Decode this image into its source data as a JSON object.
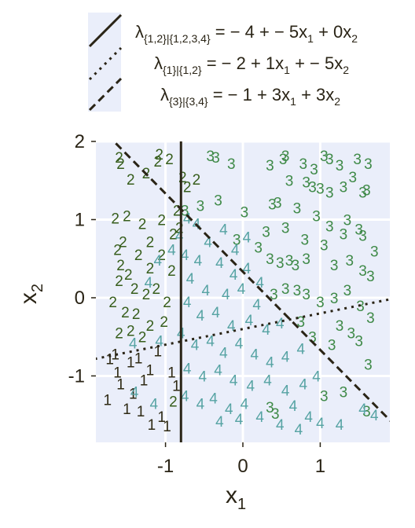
{
  "chart_data": {
    "type": "scatter",
    "title": "",
    "xlabel": "x",
    "xlabel_sub": "1",
    "ylabel": "x",
    "ylabel_sub": "2",
    "xlim": [
      -1.9,
      1.9
    ],
    "ylim": [
      -1.85,
      2.0
    ],
    "xticks": [
      -1,
      0,
      1
    ],
    "yticks": [
      -1,
      0,
      1,
      2
    ],
    "xtick_labels": [
      "-1",
      "0",
      "1"
    ],
    "ytick_labels": [
      "-1",
      "0",
      "1",
      "2"
    ],
    "grid": true,
    "background": "#eaeefa",
    "legend_position": "top",
    "legend": [
      {
        "label": "λ{1,2}|{1,2,3,4} = −4 + −5x1 + 0x2",
        "style": "solid"
      },
      {
        "label": "λ{1}|{1,2} = −2 + 1x1 + −5x2",
        "style": "dotted"
      },
      {
        "label": "λ{3}|{3,4} = −1 + 3x1 + 3x2",
        "style": "dashed"
      }
    ],
    "boundaries": [
      {
        "name": "λ{1,2}|{1,2,3,4}",
        "style": "solid",
        "intercept": -4,
        "coef_x1": -5,
        "coef_x2": 0
      },
      {
        "name": "λ{1}|{1,2}",
        "style": "dotted",
        "intercept": -2,
        "coef_x1": 1,
        "coef_x2": -5
      },
      {
        "name": "λ{3}|{3,4}",
        "style": "dashed",
        "intercept": -1,
        "coef_x1": 3,
        "coef_x2": 3
      }
    ],
    "series": [
      {
        "label": "1",
        "color": "#2f2a14",
        "points": [
          [
            -1.72,
            -0.78
          ],
          [
            -1.62,
            -0.95
          ],
          [
            -1.45,
            -0.82
          ],
          [
            -1.35,
            -0.77
          ],
          [
            -1.28,
            -1.05
          ],
          [
            -1.58,
            -1.1
          ],
          [
            -1.75,
            -1.3
          ],
          [
            -1.5,
            -1.42
          ],
          [
            -1.18,
            -1.62
          ],
          [
            -1.05,
            -1.52
          ],
          [
            -0.98,
            -1.64
          ],
          [
            -1.42,
            -1.22
          ],
          [
            -1.65,
            -0.72
          ],
          [
            -1.2,
            -0.92
          ],
          [
            -0.92,
            -0.95
          ],
          [
            -0.86,
            -1.12
          ],
          [
            -1.1,
            -0.68
          ],
          [
            -1.32,
            -1.45
          ]
        ]
      },
      {
        "label": "2",
        "color": "#375e1c",
        "points": [
          [
            -1.6,
            1.8
          ],
          [
            -1.58,
            1.72
          ],
          [
            -1.1,
            1.75
          ],
          [
            -1.08,
            1.84
          ],
          [
            -0.95,
            1.78
          ],
          [
            -1.25,
            1.6
          ],
          [
            -1.45,
            1.52
          ],
          [
            -0.72,
            1.42
          ],
          [
            -0.6,
            1.52
          ],
          [
            -0.78,
            1.55
          ],
          [
            -0.85,
            1.12
          ],
          [
            -1.65,
            1.02
          ],
          [
            -1.5,
            1.05
          ],
          [
            -1.3,
            0.95
          ],
          [
            -1.55,
            0.72
          ],
          [
            -1.62,
            0.62
          ],
          [
            -1.2,
            0.72
          ],
          [
            -1.05,
            0.55
          ],
          [
            -1.58,
            0.42
          ],
          [
            -1.48,
            0.3
          ],
          [
            -1.6,
            0.22
          ],
          [
            -1.4,
            0.12
          ],
          [
            -1.25,
            0.05
          ],
          [
            -1.52,
            -0.18
          ],
          [
            -1.38,
            -0.2
          ],
          [
            -1.2,
            -0.35
          ],
          [
            -1.6,
            -0.45
          ],
          [
            -1.12,
            0.12
          ],
          [
            -0.98,
            -0.05
          ],
          [
            -0.92,
            0.35
          ],
          [
            -1.02,
            -0.3
          ],
          [
            -1.45,
            -0.42
          ],
          [
            -0.9,
            0.82
          ],
          [
            -1.2,
            0.38
          ],
          [
            -1.35,
            0.55
          ],
          [
            -1.05,
            1.0
          ],
          [
            -0.82,
            0.9
          ],
          [
            -0.9,
            -1.32
          ],
          [
            -1.68,
            -0.05
          ],
          [
            -1.3,
            -0.5
          ]
        ]
      },
      {
        "label": "3",
        "color": "#3f8a48",
        "points": [
          [
            -0.42,
            1.82
          ],
          [
            -0.35,
            1.8
          ],
          [
            -0.15,
            1.72
          ],
          [
            0.35,
            1.7
          ],
          [
            0.55,
            1.82
          ],
          [
            0.52,
            1.78
          ],
          [
            0.78,
            1.72
          ],
          [
            0.92,
            1.65
          ],
          [
            1.05,
            1.82
          ],
          [
            1.12,
            1.78
          ],
          [
            1.25,
            1.7
          ],
          [
            1.48,
            1.78
          ],
          [
            1.62,
            1.72
          ],
          [
            0.6,
            1.5
          ],
          [
            0.82,
            1.48
          ],
          [
            0.9,
            1.42
          ],
          [
            1.0,
            1.4
          ],
          [
            1.12,
            1.35
          ],
          [
            1.3,
            1.42
          ],
          [
            1.42,
            1.55
          ],
          [
            1.55,
            1.35
          ],
          [
            1.6,
            1.38
          ],
          [
            -0.75,
            1.12
          ],
          [
            -0.55,
            1.18
          ],
          [
            -0.32,
            1.25
          ],
          [
            0.02,
            1.1
          ],
          [
            0.38,
            1.2
          ],
          [
            0.45,
            1.22
          ],
          [
            0.7,
            1.15
          ],
          [
            0.95,
            1.05
          ],
          [
            1.12,
            0.92
          ],
          [
            1.35,
            1.0
          ],
          [
            1.5,
            0.88
          ],
          [
            0.3,
            0.85
          ],
          [
            0.55,
            0.9
          ],
          [
            0.8,
            0.75
          ],
          [
            1.05,
            0.68
          ],
          [
            1.3,
            0.82
          ],
          [
            1.55,
            0.8
          ],
          [
            1.7,
            0.6
          ],
          [
            0.35,
            0.5
          ],
          [
            0.48,
            0.45
          ],
          [
            0.6,
            0.48
          ],
          [
            0.68,
            0.42
          ],
          [
            0.82,
            0.5
          ],
          [
            1.18,
            0.42
          ],
          [
            1.38,
            0.48
          ],
          [
            1.55,
            0.35
          ],
          [
            1.65,
            0.28
          ],
          [
            0.4,
            0.05
          ],
          [
            0.55,
            0.12
          ],
          [
            0.7,
            0.1
          ],
          [
            0.82,
            0.05
          ],
          [
            1.0,
            -0.05
          ],
          [
            1.18,
            0.0
          ],
          [
            1.35,
            0.1
          ],
          [
            1.52,
            -0.1
          ],
          [
            1.65,
            -0.25
          ],
          [
            1.25,
            -0.35
          ],
          [
            1.4,
            -0.45
          ],
          [
            1.15,
            -0.6
          ],
          [
            0.9,
            -0.5
          ],
          [
            1.5,
            -0.55
          ],
          [
            1.62,
            -0.85
          ],
          [
            1.3,
            -1.2
          ],
          [
            1.05,
            -1.25
          ],
          [
            0.42,
            -1.48
          ],
          [
            0.35,
            -1.4
          ],
          [
            1.6,
            -1.45
          ],
          [
            0.75,
            -0.3
          ],
          [
            -0.08,
            0.75
          ],
          [
            0.2,
            0.65
          ]
        ]
      },
      {
        "label": "4",
        "color": "#56a3a3",
        "points": [
          [
            -0.72,
            1.02
          ],
          [
            -0.6,
            0.95
          ],
          [
            -0.82,
            0.8
          ],
          [
            -0.45,
            0.72
          ],
          [
            -0.25,
            0.88
          ],
          [
            -0.1,
            0.62
          ],
          [
            0.05,
            0.78
          ],
          [
            -0.75,
            0.55
          ],
          [
            -0.58,
            0.48
          ],
          [
            -0.3,
            0.45
          ],
          [
            -0.12,
            0.3
          ],
          [
            0.05,
            0.38
          ],
          [
            0.22,
            0.2
          ],
          [
            -0.68,
            0.25
          ],
          [
            -0.48,
            0.1
          ],
          [
            -0.22,
            0.05
          ],
          [
            -0.02,
            0.12
          ],
          [
            0.18,
            -0.08
          ],
          [
            -0.72,
            -0.05
          ],
          [
            -0.55,
            -0.22
          ],
          [
            -0.35,
            -0.18
          ],
          [
            -0.15,
            -0.35
          ],
          [
            0.08,
            -0.28
          ],
          [
            0.3,
            -0.4
          ],
          [
            0.48,
            -0.32
          ],
          [
            -0.8,
            -0.45
          ],
          [
            -0.62,
            -0.6
          ],
          [
            -0.42,
            -0.55
          ],
          [
            -0.25,
            -0.7
          ],
          [
            -0.05,
            -0.58
          ],
          [
            0.15,
            -0.72
          ],
          [
            0.35,
            -0.82
          ],
          [
            0.55,
            -0.75
          ],
          [
            0.75,
            -0.65
          ],
          [
            -0.72,
            -0.9
          ],
          [
            -0.52,
            -1.0
          ],
          [
            -0.32,
            -0.92
          ],
          [
            -0.12,
            -1.05
          ],
          [
            0.1,
            -1.12
          ],
          [
            0.32,
            -1.05
          ],
          [
            0.55,
            -1.18
          ],
          [
            0.78,
            -1.1
          ],
          [
            0.95,
            -1.0
          ],
          [
            -0.75,
            -1.25
          ],
          [
            -0.55,
            -1.35
          ],
          [
            -0.38,
            -1.28
          ],
          [
            -0.18,
            -1.42
          ],
          [
            0.02,
            -1.35
          ],
          [
            0.22,
            -1.52
          ],
          [
            0.48,
            -1.62
          ],
          [
            0.65,
            -1.38
          ],
          [
            0.85,
            -1.52
          ],
          [
            1.0,
            -1.6
          ],
          [
            1.25,
            -1.62
          ],
          [
            -0.3,
            -1.58
          ],
          [
            -0.05,
            -1.55
          ],
          [
            0.72,
            -1.68
          ],
          [
            -1.1,
            0.48
          ],
          [
            -1.22,
            0.2
          ],
          [
            -1.42,
            -0.58
          ],
          [
            -1.08,
            -0.55
          ],
          [
            -1.4,
            -1.2
          ],
          [
            -0.92,
            0.62
          ],
          [
            -1.15,
            -1.35
          ],
          [
            1.55,
            -1.42
          ],
          [
            1.7,
            -1.5
          ]
        ]
      }
    ]
  }
}
